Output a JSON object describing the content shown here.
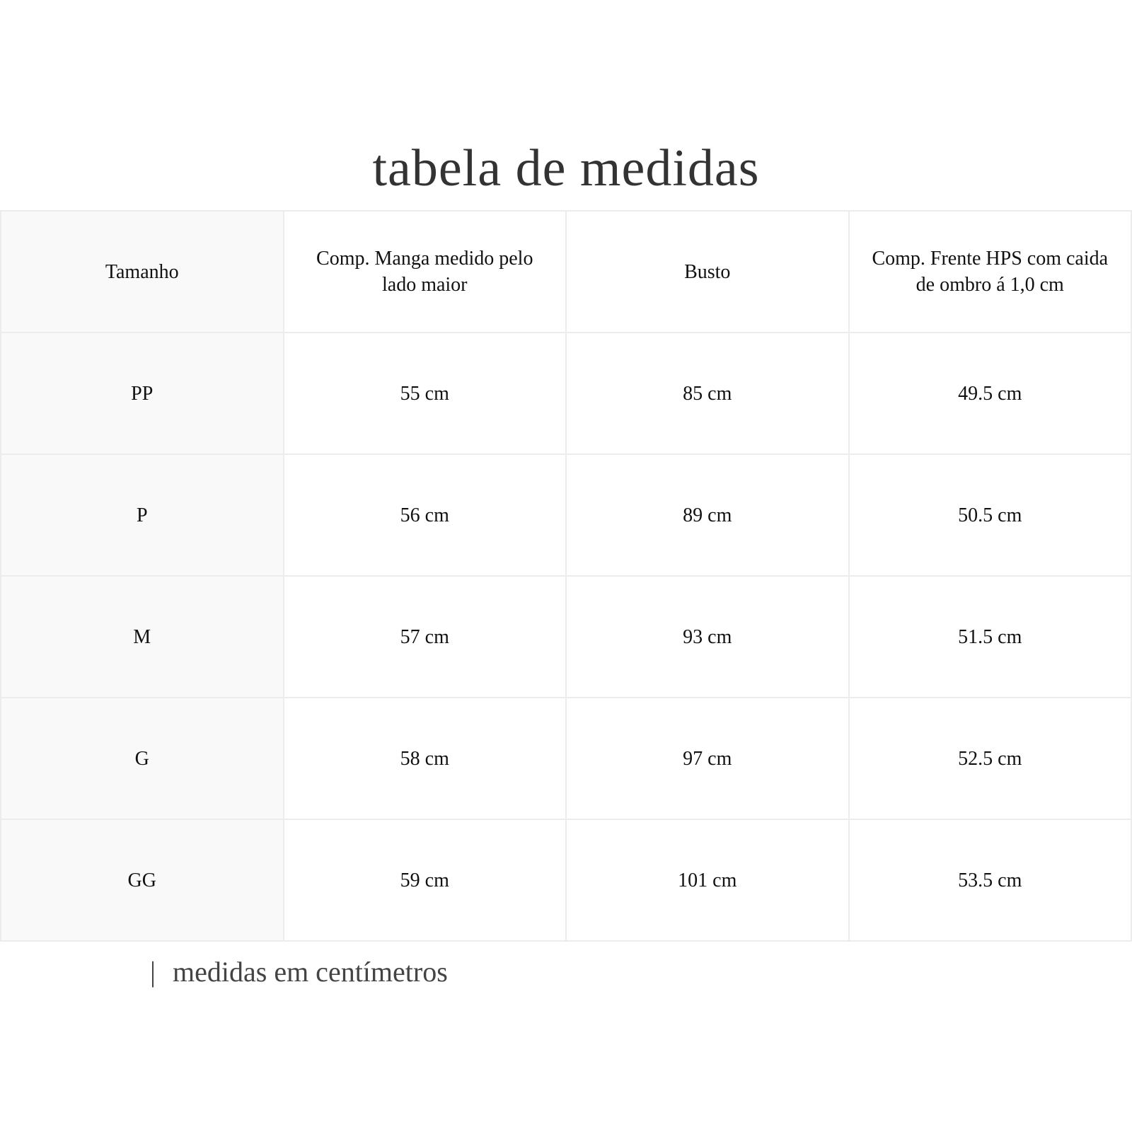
{
  "title": "tabela de medidas",
  "table": {
    "headers": [
      "Tamanho",
      "Comp. Manga medido pelo lado maior",
      "Busto",
      "Comp. Frente HPS com caida de ombro á 1,0 cm"
    ],
    "rows": [
      [
        "PP",
        "55 cm",
        "85 cm",
        "49.5 cm"
      ],
      [
        "P",
        "56 cm",
        "89 cm",
        "50.5 cm"
      ],
      [
        "M",
        "57 cm",
        "93 cm",
        "51.5 cm"
      ],
      [
        "G",
        "58 cm",
        "97 cm",
        "52.5 cm"
      ],
      [
        "GG",
        "59 cm",
        "101 cm",
        "53.5 cm"
      ]
    ]
  },
  "note": {
    "separator": "|",
    "text": "medidas em centímetros"
  },
  "colors": {
    "first_column_bg": "#f9f9f9",
    "border": "#ececec"
  }
}
